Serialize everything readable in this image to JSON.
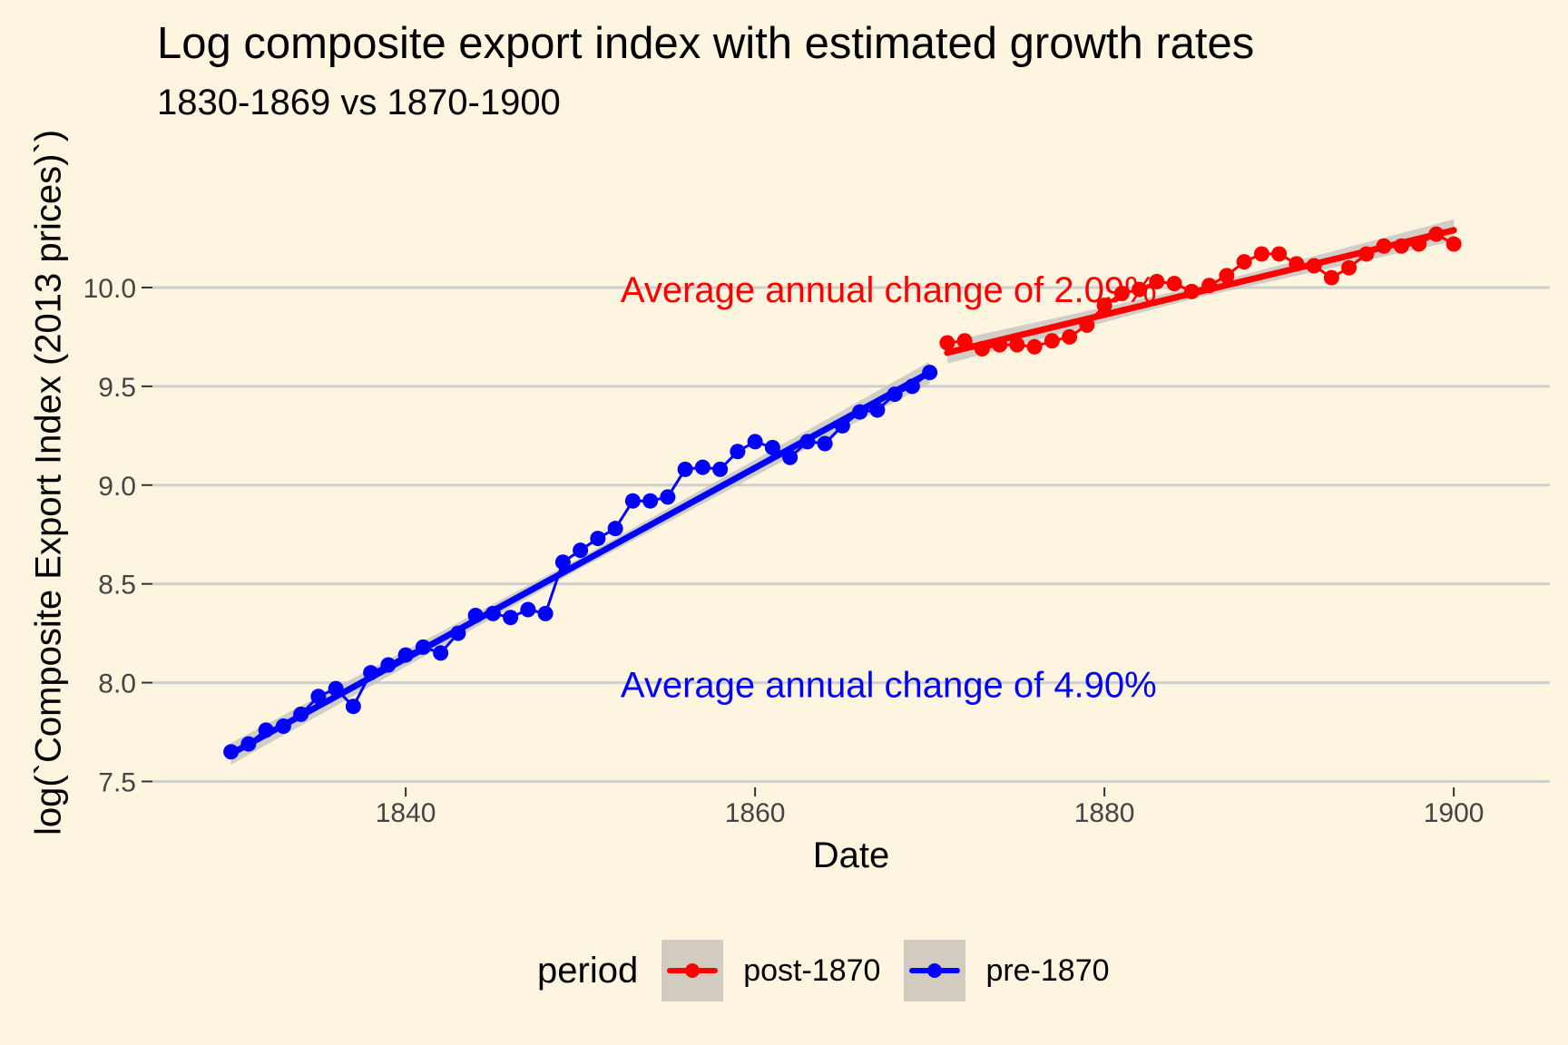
{
  "chart_data": {
    "type": "line",
    "title": "Log composite export index with estimated growth rates",
    "subtitle": "1830-1869 vs 1870-1900",
    "xlabel": "Date",
    "ylabel": "log(`Composite Export Index (2013 prices)`)",
    "xlim": [
      1825.5,
      1905.5
    ],
    "ylim": [
      7.47,
      10.56
    ],
    "x_ticks": [
      "1840",
      "1860",
      "1880",
      "1900"
    ],
    "y_ticks": [
      "7.5",
      "8.0",
      "8.5",
      "9.0",
      "9.5",
      "10.0"
    ],
    "grid": "horizontal",
    "legend": {
      "title": "period",
      "placement": "bottom",
      "entries": [
        "post-1870",
        "pre-1870"
      ]
    },
    "annotations": [
      {
        "text": "Average annual change of 2.09%",
        "x": 1852.3,
        "y": 9.99,
        "color": "#ff0000"
      },
      {
        "text": "Average annual change of 4.90%",
        "x": 1852.3,
        "y": 7.99,
        "color": "#0000ff"
      }
    ],
    "series": [
      {
        "name": "post-1870",
        "color": "#ff0000",
        "trend": {
          "x": [
            1871,
            1900
          ],
          "y": [
            9.67,
            10.29
          ]
        },
        "x": [
          1871,
          1872,
          1873,
          1874,
          1875,
          1876,
          1877,
          1878,
          1879,
          1880,
          1881,
          1882,
          1883,
          1884,
          1885,
          1886,
          1887,
          1888,
          1889,
          1890,
          1891,
          1892,
          1893,
          1894,
          1895,
          1896,
          1897,
          1898,
          1899,
          1900
        ],
        "y": [
          9.72,
          9.73,
          9.69,
          9.71,
          9.71,
          9.7,
          9.73,
          9.75,
          9.81,
          9.91,
          9.97,
          9.99,
          10.03,
          10.02,
          9.98,
          10.01,
          10.06,
          10.13,
          10.17,
          10.17,
          10.12,
          10.11,
          10.05,
          10.1,
          10.17,
          10.21,
          10.21,
          10.22,
          10.27,
          10.22
        ]
      },
      {
        "name": "pre-1870",
        "color": "#0000ff",
        "trend": {
          "x": [
            1830,
            1870
          ],
          "y": [
            7.64,
            9.57
          ]
        },
        "x": [
          1830,
          1831,
          1832,
          1833,
          1834,
          1835,
          1836,
          1837,
          1838,
          1839,
          1840,
          1841,
          1842,
          1843,
          1844,
          1845,
          1846,
          1847,
          1848,
          1849,
          1850,
          1851,
          1852,
          1853,
          1854,
          1855,
          1856,
          1857,
          1858,
          1859,
          1860,
          1861,
          1862,
          1863,
          1864,
          1865,
          1866,
          1867,
          1868,
          1869,
          1870
        ],
        "y": [
          7.65,
          7.69,
          7.76,
          7.78,
          7.84,
          7.93,
          7.97,
          7.88,
          8.05,
          8.09,
          8.14,
          8.18,
          8.15,
          8.25,
          8.34,
          8.35,
          8.33,
          8.37,
          8.35,
          8.61,
          8.67,
          8.73,
          8.78,
          8.92,
          8.92,
          8.94,
          9.08,
          9.09,
          9.08,
          9.17,
          9.22,
          9.19,
          9.14,
          9.22,
          9.21,
          9.3,
          9.37,
          9.38,
          9.46,
          9.5,
          9.57
        ]
      }
    ]
  }
}
